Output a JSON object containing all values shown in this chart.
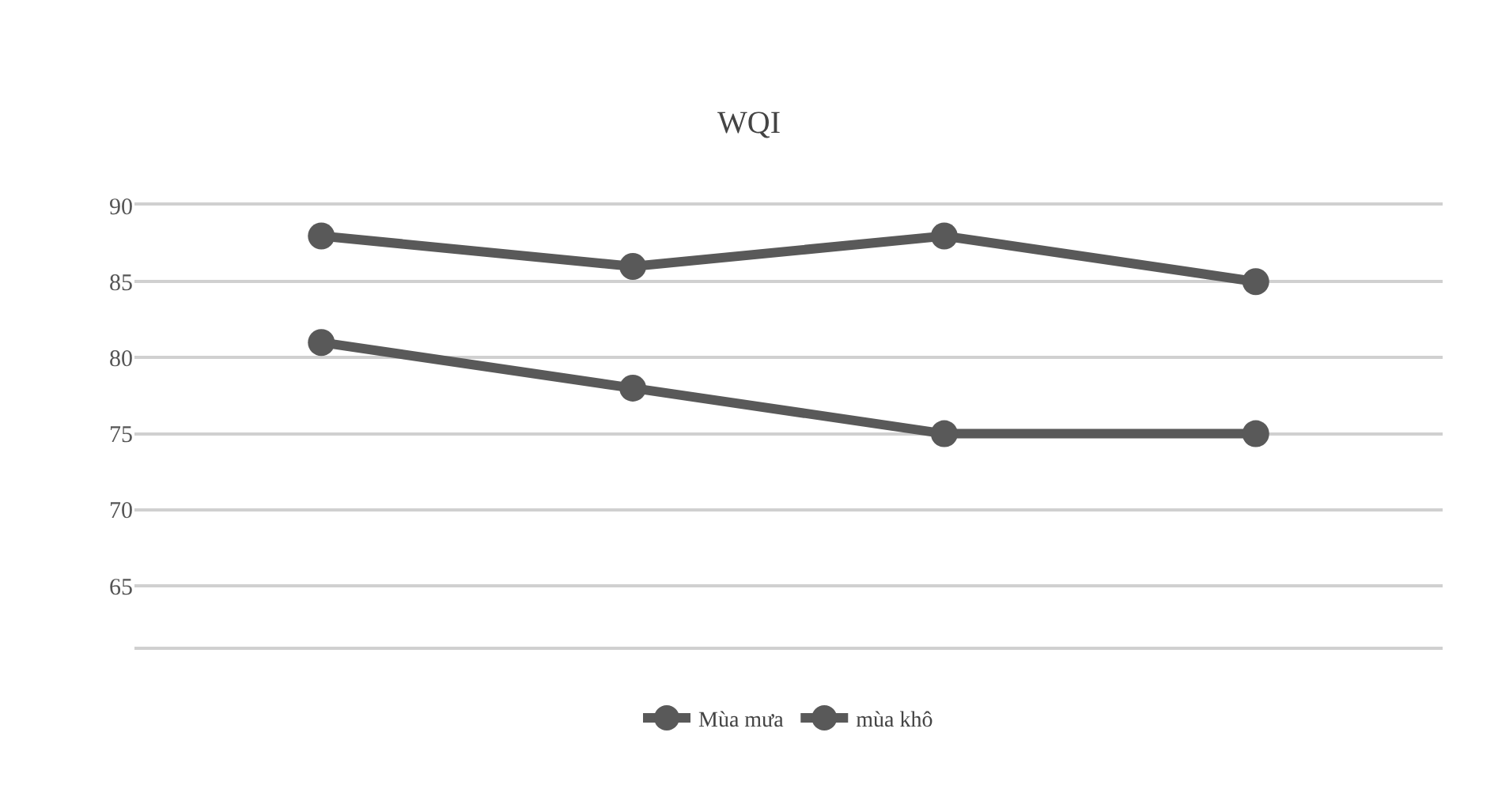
{
  "chart_data": {
    "type": "line",
    "title": "WQI",
    "categories": [
      null,
      null,
      null,
      null
    ],
    "series": [
      {
        "name": "Mùa mưa",
        "color": "#595959",
        "values": [
          88,
          86,
          88,
          85
        ]
      },
      {
        "name": "mùa khô",
        "color": "#595959",
        "values": [
          81,
          78,
          75,
          75
        ]
      }
    ],
    "ylim": [
      61,
      90
    ],
    "yticks": [
      65,
      70,
      75,
      80,
      85,
      90
    ],
    "grid": "y",
    "legend": "bottom",
    "marker": "circle",
    "line_style": "solid",
    "tick_labels": "y"
  }
}
